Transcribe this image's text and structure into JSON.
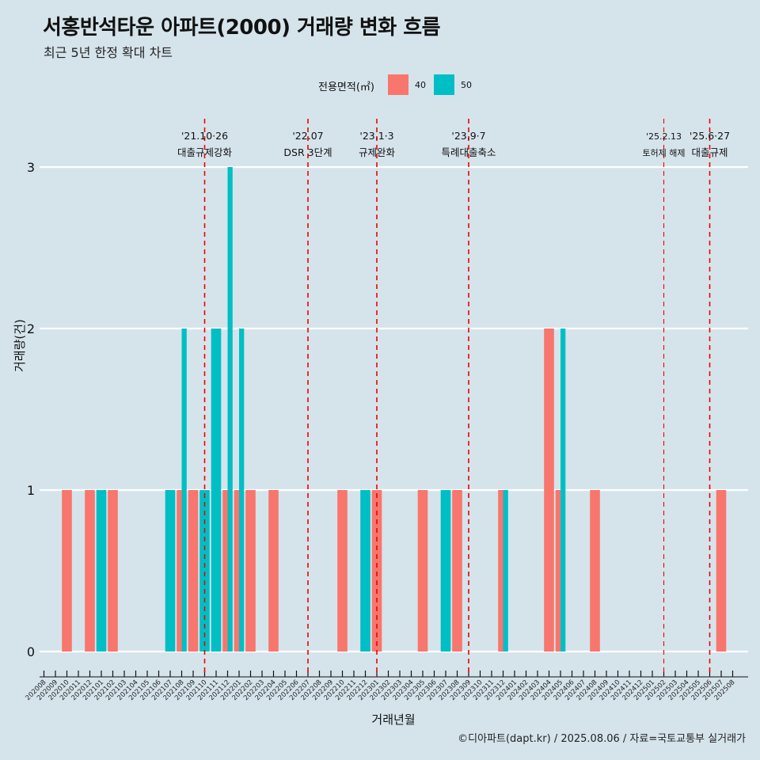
{
  "title": "서홍반석타운 아파트(2000) 거래량 변화 흐름",
  "subtitle": "최근 5년 한정 확대 차트",
  "caption": "©디아파트(dapt.kr) / 2025.08.06 / 자료=국토교통부 실거래가",
  "colors": {
    "s40": "#f8766d",
    "s50": "#00bfc4",
    "vline": "#ee0000",
    "background": "#d5e4eb",
    "grid": "#ffffff"
  },
  "chart_data": {
    "type": "bar",
    "xlabel": "거래년월",
    "ylabel": "거래량(건)",
    "legend_title": "전용면적(㎡)",
    "legend_position": "top",
    "ylim": [
      0,
      3
    ],
    "yticks": [
      0,
      1,
      2,
      3
    ],
    "categories": [
      "202008",
      "202009",
      "202010",
      "202011",
      "202012",
      "202101",
      "202102",
      "202103",
      "202104",
      "202105",
      "202106",
      "202107",
      "202108",
      "202109",
      "202110",
      "202111",
      "202112",
      "202201",
      "202202",
      "202203",
      "202204",
      "202205",
      "202206",
      "202207",
      "202208",
      "202209",
      "202210",
      "202211",
      "202212",
      "202301",
      "202302",
      "202303",
      "202304",
      "202305",
      "202306",
      "202307",
      "202308",
      "202309",
      "202310",
      "202311",
      "202312",
      "202401",
      "202402",
      "202403",
      "202404",
      "202405",
      "202406",
      "202407",
      "202408",
      "202409",
      "202410",
      "202411",
      "202412",
      "202501",
      "202502",
      "202503",
      "202504",
      "202505",
      "202506",
      "202507",
      "202508"
    ],
    "series": [
      {
        "name": "40",
        "values": [
          0,
          0,
          1,
          0,
          1,
          0,
          1,
          0,
          0,
          0,
          0,
          0,
          1,
          1,
          0,
          0,
          1,
          1,
          1,
          0,
          1,
          0,
          0,
          0,
          0,
          0,
          1,
          0,
          0,
          1,
          0,
          0,
          0,
          1,
          0,
          0,
          1,
          0,
          0,
          0,
          1,
          0,
          0,
          0,
          2,
          1,
          0,
          0,
          1,
          0,
          0,
          0,
          0,
          0,
          0,
          0,
          0,
          0,
          0,
          1,
          0
        ]
      },
      {
        "name": "50",
        "values": [
          0,
          0,
          0,
          0,
          0,
          1,
          0,
          0,
          0,
          0,
          0,
          1,
          2,
          0,
          1,
          2,
          3,
          2,
          0,
          0,
          0,
          0,
          0,
          0,
          0,
          0,
          0,
          0,
          1,
          0,
          0,
          0,
          0,
          0,
          0,
          1,
          0,
          0,
          0,
          0,
          1,
          0,
          0,
          0,
          0,
          2,
          0,
          0,
          0,
          0,
          0,
          0,
          0,
          0,
          0,
          0,
          0,
          0,
          0,
          0,
          0
        ]
      }
    ],
    "annotations": [
      {
        "at": "202110",
        "date": "'21.10·26",
        "label": "대출규제강화"
      },
      {
        "at": "202207",
        "date": "'22.07",
        "label": "DSR 3단계"
      },
      {
        "at": "202301",
        "date": "'23.1·3",
        "label": "규제완화"
      },
      {
        "at": "202309",
        "date": "'23.9·7",
        "label": "특례대출축소"
      },
      {
        "at": "202502",
        "date": "'25.2.13",
        "label": "토허제 해제"
      },
      {
        "at": "202506",
        "date": "'25.6·27",
        "label": "대출규제"
      }
    ]
  }
}
